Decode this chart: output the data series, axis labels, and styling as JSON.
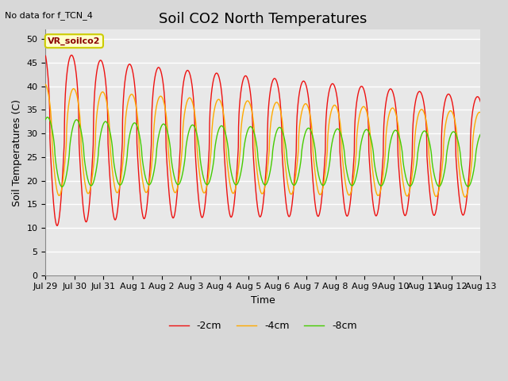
{
  "title": "Soil CO2 North Temperatures",
  "no_data_text": "No data for f_TCN_4",
  "legend_label_text": "VR_soilco2",
  "xlabel": "Time",
  "ylabel": "Soil Temperatures (C)",
  "ylim": [
    0,
    52
  ],
  "yticks": [
    0,
    5,
    10,
    15,
    20,
    25,
    30,
    35,
    40,
    45,
    50
  ],
  "line_colors": [
    "#ee1111",
    "#ffaa00",
    "#44cc00"
  ],
  "line_labels": [
    "-2cm",
    "-4cm",
    "-8cm"
  ],
  "x_tick_labels": [
    "Jul 29",
    "Jul 30",
    "Jul 31",
    "Aug 1",
    "Aug 2",
    "Aug 3",
    "Aug 4",
    "Aug 5",
    "Aug 6",
    "Aug 7",
    "Aug 8",
    "Aug 9",
    "Aug 10",
    "Aug 11",
    "Aug 12",
    "Aug 13"
  ],
  "background_color": "#e8e8e8",
  "plot_bg_color": "#e8e8e8",
  "grid_color": "#ffffff",
  "title_fontsize": 13,
  "axis_fontsize": 9,
  "tick_fontsize": 8
}
